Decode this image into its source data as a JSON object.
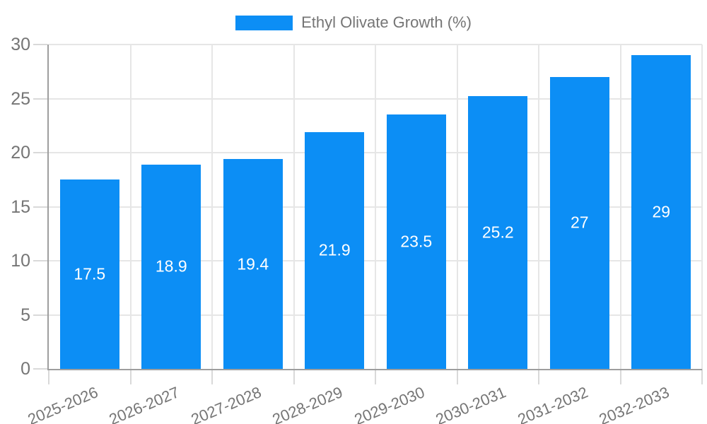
{
  "chart_data": {
    "type": "bar",
    "title": "",
    "categories": [
      "2025-2026",
      "2026-2027",
      "2027-2028",
      "2028-2029",
      "2029-2030",
      "2030-2031",
      "2031-2032",
      "2032-2033"
    ],
    "series": [
      {
        "name": "Ethyl Olivate Growth (%)",
        "values": [
          17.5,
          18.9,
          19.4,
          21.9,
          23.5,
          25.2,
          27,
          29
        ],
        "labels": [
          "17.5",
          "18.9",
          "19.4",
          "21.9",
          "23.5",
          "25.2",
          "27",
          "29"
        ]
      }
    ],
    "xlabel": "",
    "ylabel": "",
    "ylim": [
      0,
      30
    ],
    "yticks": [
      0,
      5,
      10,
      15,
      20,
      25,
      30
    ],
    "ytick_labels": [
      "0",
      "5",
      "10",
      "15",
      "20",
      "25",
      "30"
    ],
    "grid": true,
    "legend_position": "top",
    "x_label_rotation_deg": -23,
    "colors": {
      "bar": "#0c8ef5",
      "data_label": "#ffffff",
      "axis_text": "#757575",
      "legend_text": "#757575",
      "gridline": "#e6e6e6",
      "axis_line": "#9e9e9e",
      "tick_mark": "#d9d9d9",
      "background": "#ffffff"
    }
  }
}
